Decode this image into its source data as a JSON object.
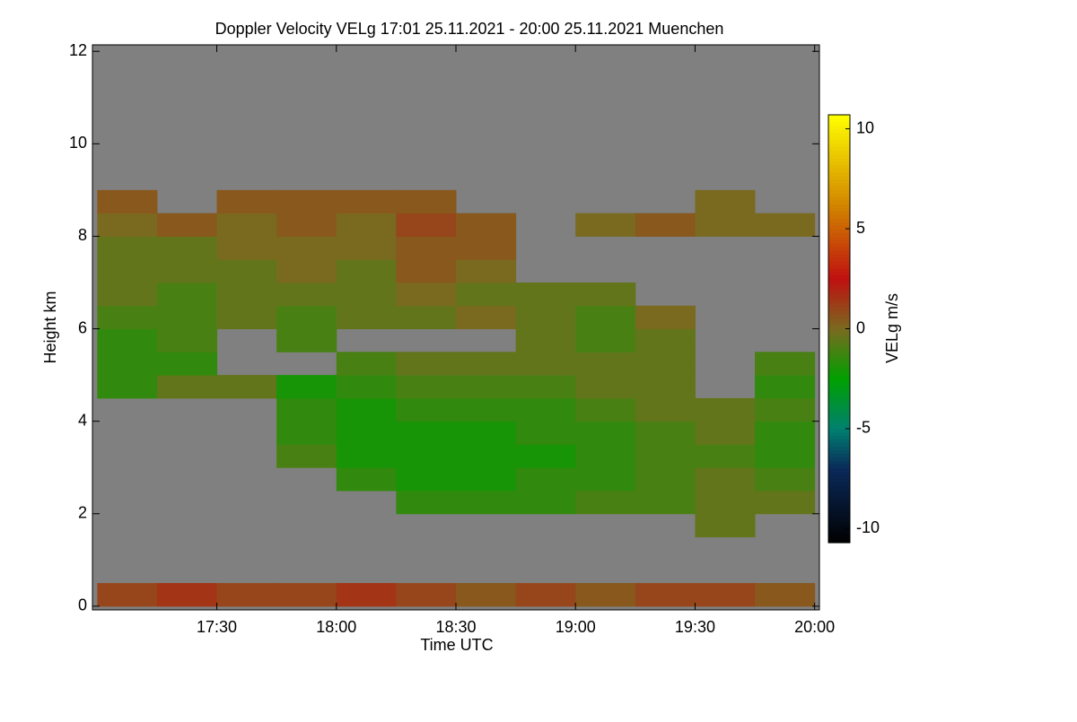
{
  "chart_data": {
    "type": "heatmap",
    "title": "Doppler Velocity VELg   17:01 25.11.2021 - 20:00 25.11.2021 Muenchen",
    "x_label": "Time UTC",
    "y_label": "Height km",
    "colorbar_label": "VELg m/s",
    "xlim": [
      16.98,
      20.02
    ],
    "xticks": [
      {
        "value": 17.5,
        "label": "17:30"
      },
      {
        "value": 18,
        "label": "18:00"
      },
      {
        "value": 18.5,
        "label": "18:30"
      },
      {
        "value": 19,
        "label": "19:00"
      },
      {
        "value": 19.5,
        "label": "19:30"
      },
      {
        "value": 20,
        "label": "20:00"
      }
    ],
    "ylim": [
      -0.08,
      12.14
    ],
    "yticks": [
      0,
      2,
      4,
      6,
      8,
      10,
      12
    ],
    "zlim": [
      -10.7,
      10.7
    ],
    "zticks": [
      10,
      5,
      0,
      -5,
      -10
    ],
    "missing_color": "#808080",
    "colorscale": [
      {
        "value": -10.7,
        "color": "#000000"
      },
      {
        "value": -7,
        "color": "#0a2a5a"
      },
      {
        "value": -5,
        "color": "#008070"
      },
      {
        "value": -2.5,
        "color": "#00a000"
      },
      {
        "value": 0,
        "color": "#7a6a20"
      },
      {
        "value": 2.5,
        "color": "#c01010"
      },
      {
        "value": 6,
        "color": "#d08000"
      },
      {
        "value": 10.7,
        "color": "#ffff00"
      }
    ],
    "x_bins": [
      17,
      17.25,
      17.5,
      17.75,
      18,
      18.25,
      18.5,
      18.75,
      19,
      19.25,
      19.5,
      19.75,
      20
    ],
    "y_bins": [
      0,
      0.5,
      1,
      1.5,
      2,
      2.5,
      3,
      3.5,
      4,
      4.5,
      5,
      5.5,
      6,
      6.5,
      7,
      7.5,
      8,
      8.5,
      9,
      9.5,
      10,
      10.5,
      11,
      11.5,
      12
    ],
    "z": [
      [
        1,
        1.5,
        1,
        1,
        1.5,
        1,
        0.5,
        1,
        0.5,
        1,
        1,
        0.5
      ],
      [
        null,
        null,
        null,
        null,
        null,
        null,
        null,
        null,
        null,
        null,
        null,
        null
      ],
      [
        null,
        null,
        null,
        null,
        null,
        null,
        null,
        null,
        null,
        null,
        null,
        null
      ],
      [
        null,
        null,
        null,
        null,
        null,
        null,
        null,
        null,
        null,
        null,
        -0.5,
        null
      ],
      [
        null,
        null,
        null,
        null,
        null,
        -1.5,
        -1.5,
        -1.5,
        -1,
        -1,
        -0.5,
        -0.5
      ],
      [
        null,
        null,
        null,
        null,
        -1.5,
        -2,
        -2,
        -1.5,
        -1.5,
        -1,
        -0.5,
        -1
      ],
      [
        null,
        null,
        null,
        -1,
        -2,
        -2,
        -2,
        -2,
        -1.5,
        -1,
        -1,
        -1.5
      ],
      [
        null,
        null,
        null,
        -1.5,
        -2,
        -2,
        -2,
        -1.5,
        -1.5,
        -1,
        -0.5,
        -1.5
      ],
      [
        null,
        null,
        null,
        -1.5,
        -2,
        -1.5,
        -1.5,
        -1.5,
        -1,
        -0.5,
        -0.5,
        -1
      ],
      [
        -1.5,
        -0.5,
        -0.5,
        -2,
        -1.5,
        -1,
        -1,
        -1,
        -0.5,
        -0.5,
        null,
        -1.5
      ],
      [
        -1.5,
        -1.5,
        null,
        null,
        -1,
        -0.5,
        -0.5,
        -0.5,
        -0.5,
        -0.5,
        null,
        -1
      ],
      [
        -1.5,
        -1,
        null,
        -1,
        null,
        null,
        null,
        -0.5,
        -1,
        -0.5,
        null,
        null
      ],
      [
        -1,
        -1,
        -0.5,
        -1,
        -0.5,
        -0.5,
        0,
        -0.5,
        -1,
        0,
        null,
        null
      ],
      [
        -0.5,
        -1,
        -0.5,
        -0.5,
        -0.5,
        0,
        -0.5,
        -0.5,
        -0.5,
        null,
        null,
        null
      ],
      [
        -0.5,
        -0.5,
        -0.5,
        0,
        -0.5,
        0.5,
        0,
        null,
        null,
        null,
        null,
        null
      ],
      [
        -0.5,
        -0.5,
        0,
        0,
        0,
        0.5,
        0.5,
        null,
        null,
        null,
        null,
        null
      ],
      [
        0,
        0.5,
        0,
        0.5,
        0,
        1,
        0.5,
        null,
        0,
        0.5,
        0,
        0
      ],
      [
        0.5,
        null,
        0.5,
        0.5,
        0.5,
        0.5,
        null,
        null,
        null,
        null,
        0,
        null
      ],
      [
        null,
        null,
        null,
        null,
        null,
        null,
        null,
        null,
        null,
        null,
        null,
        null
      ],
      [
        null,
        null,
        null,
        null,
        null,
        null,
        null,
        null,
        null,
        null,
        null,
        null
      ],
      [
        null,
        null,
        null,
        null,
        null,
        null,
        null,
        null,
        null,
        null,
        null,
        null
      ],
      [
        null,
        null,
        null,
        null,
        null,
        null,
        null,
        null,
        null,
        null,
        null,
        null
      ],
      [
        null,
        null,
        null,
        null,
        null,
        null,
        null,
        null,
        null,
        null,
        null,
        null
      ],
      [
        null,
        null,
        null,
        null,
        null,
        null,
        null,
        null,
        null,
        null,
        null,
        null
      ]
    ]
  }
}
